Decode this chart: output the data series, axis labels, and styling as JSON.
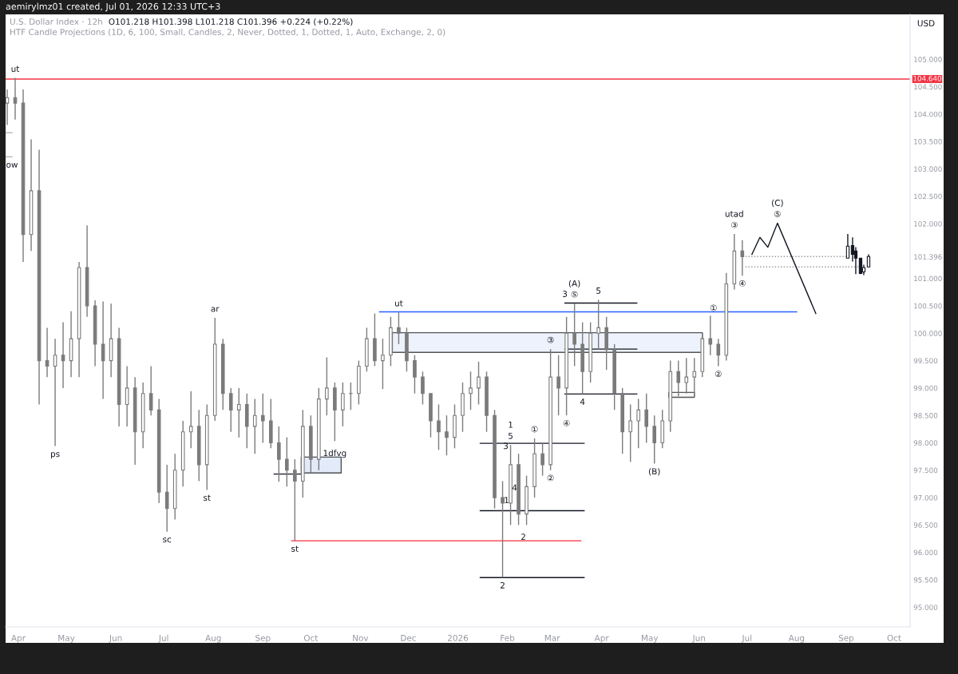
{
  "chart_data": {
    "type": "candlestick",
    "title": "U.S. Dollar Index · 12h",
    "subtitle": "HTF Candle Projections (1D, 6, 100, Small, Candles, 2, Never, Dotted, 1, Dotted, 1, Auto, Exchange, 2, 0)",
    "ylabel": "USD",
    "xlim": [
      "2025-03-24",
      "2026-10-11"
    ],
    "ylim": [
      94.64,
      105.82
    ],
    "xticks": [
      {
        "value": "2025-04-01",
        "label": "Apr"
      },
      {
        "value": "2025-05-01",
        "label": "May"
      },
      {
        "value": "2025-06-01",
        "label": "Jun"
      },
      {
        "value": "2025-07-01",
        "label": "Jul"
      },
      {
        "value": "2025-08-01",
        "label": "Aug"
      },
      {
        "value": "2025-09-01",
        "label": "Sep"
      },
      {
        "value": "2025-10-01",
        "label": "Oct"
      },
      {
        "value": "2025-11-01",
        "label": "Nov"
      },
      {
        "value": "2025-12-01",
        "label": "Dec"
      },
      {
        "value": "2026-01-01",
        "label": "2026"
      },
      {
        "value": "2026-02-01",
        "label": "Feb"
      },
      {
        "value": "2026-03-01",
        "label": "Mar"
      },
      {
        "value": "2026-04-01",
        "label": "Apr"
      },
      {
        "value": "2026-05-01",
        "label": "May"
      },
      {
        "value": "2026-06-01",
        "label": "Jun"
      },
      {
        "value": "2026-07-01",
        "label": "Jul"
      },
      {
        "value": "2026-08-01",
        "label": "Aug"
      },
      {
        "value": "2026-09-01",
        "label": "Sep"
      },
      {
        "value": "2026-10-01",
        "label": "Oct"
      }
    ],
    "yticks": [
      {
        "value": 95,
        "label": "95.000"
      },
      {
        "value": 95.5,
        "label": "95.500"
      },
      {
        "value": 96,
        "label": "96.000"
      },
      {
        "value": 96.5,
        "label": "96.500"
      },
      {
        "value": 97,
        "label": "97.000"
      },
      {
        "value": 97.5,
        "label": "97.500"
      },
      {
        "value": 98,
        "label": "98.000"
      },
      {
        "value": 98.5,
        "label": "98.500"
      },
      {
        "value": 99,
        "label": "99.000"
      },
      {
        "value": 99.5,
        "label": "99.500"
      },
      {
        "value": 100,
        "label": "100.000"
      },
      {
        "value": 100.5,
        "label": "100.500"
      },
      {
        "value": 101,
        "label": "101.000"
      },
      {
        "value": 101.396,
        "label": "101.396"
      },
      {
        "value": 102,
        "label": "102.000"
      },
      {
        "value": 102.5,
        "label": "102.500"
      },
      {
        "value": 103,
        "label": "103.000"
      },
      {
        "value": 103.5,
        "label": "103.500"
      },
      {
        "value": 104,
        "label": "104.000"
      },
      {
        "value": 104.5,
        "label": "104.500"
      },
      {
        "value": 105,
        "label": "105.000"
      }
    ],
    "ref_lines": [
      {
        "axis": "y",
        "value": 104.64,
        "label": "104.640",
        "color": "#f23645"
      }
    ],
    "series": [
      {
        "type": "line",
        "color": "#eef2fc",
        "x": [
          "2025-11-21",
          "2026-06-03"
        ],
        "values": [
          null,
          null
        ],
        "lower": [
          99.65,
          99.65
        ],
        "upper": [
          100.01,
          100.01
        ]
      },
      {
        "type": "line",
        "color": "#e3eaf9",
        "x": [
          "2025-09-25",
          "2025-10-20"
        ],
        "values": [
          null,
          null
        ],
        "lower": [
          97.45,
          97.45
        ],
        "upper": [
          97.74,
          97.74
        ]
      },
      {
        "type": "line",
        "color": "#f8f8f8",
        "x": [
          "2026-05-13",
          "2026-05-29"
        ],
        "values": [
          null,
          null
        ],
        "lower": [
          98.83,
          98.83
        ],
        "upper": [
          98.92,
          98.92
        ]
      },
      {
        "type": "line",
        "color": "#2962ff",
        "x": [
          "2025-11-13",
          "2026-08-01"
        ],
        "values": [
          100.39,
          100.39
        ]
      },
      {
        "type": "line",
        "color": "#f7525f",
        "x": [
          "2025-09-19",
          "2026-03-19"
        ],
        "values": [
          96.21,
          96.21
        ]
      },
      {
        "type": "line",
        "color": "#131722",
        "x": [
          "2026-03-09",
          "2026-04-23"
        ],
        "values": [
          100.55,
          100.55
        ]
      },
      {
        "type": "line",
        "color": "#131722",
        "x": [
          "2026-03-09",
          "2026-04-23"
        ],
        "values": [
          99.71,
          99.71
        ]
      },
      {
        "type": "line",
        "color": "#131722",
        "x": [
          "2026-03-09",
          "2026-04-23"
        ],
        "values": [
          98.89,
          98.89
        ]
      },
      {
        "type": "line",
        "color": "#131722",
        "x": [
          "2026-01-15",
          "2026-03-21"
        ],
        "values": [
          97.99,
          97.99
        ]
      },
      {
        "type": "line",
        "color": "#131722",
        "x": [
          "2026-01-15",
          "2026-03-21"
        ],
        "values": [
          96.76,
          96.76
        ]
      },
      {
        "type": "line",
        "color": "#131722",
        "x": [
          "2026-01-15",
          "2026-03-21"
        ],
        "values": [
          95.54,
          95.54
        ]
      },
      {
        "type": "line",
        "color": "#131722",
        "x": [
          "2025-09-08",
          "2025-09-25"
        ],
        "values": [
          97.43,
          97.43
        ]
      },
      {
        "type": "line",
        "color": "#b2b5be",
        "x": [
          "2025-03-24",
          "2025-03-28"
        ],
        "values": [
          103.66,
          103.66
        ]
      },
      {
        "type": "line",
        "color": "#b2b5be",
        "x": [
          "2025-03-24",
          "2025-03-28"
        ],
        "values": [
          103.22,
          103.22
        ]
      },
      {
        "type": "line",
        "color": "#9598a1",
        "line_style": "dotted",
        "x": [
          "2026-06-30",
          "2026-09-01"
        ],
        "values": [
          101.4,
          101.4
        ]
      },
      {
        "type": "line",
        "color": "#9598a1",
        "line_style": "dotted",
        "x": [
          "2026-06-30",
          "2026-09-11"
        ],
        "values": [
          101.21,
          101.21
        ]
      },
      {
        "type": "line",
        "color": "#131722",
        "x": [
          "2026-07-04",
          "2026-07-09",
          "2026-07-14",
          "2026-07-20",
          "2026-08-13"
        ],
        "values": [
          101.44,
          101.75,
          101.57,
          102.01,
          100.36
        ]
      },
      {
        "color": "#7b7b7b",
        "x": [
          "2025-03-25",
          "2025-03-30",
          "2025-04-04",
          "2025-04-09",
          "2025-04-14",
          "2025-04-19",
          "2025-04-24",
          "2025-04-29",
          "2025-05-04",
          "2025-05-09",
          "2025-05-14",
          "2025-05-19",
          "2025-05-24",
          "2025-05-29",
          "2025-06-03",
          "2025-06-08",
          "2025-06-13",
          "2025-06-18",
          "2025-06-23",
          "2025-06-28",
          "2025-07-03",
          "2025-07-08",
          "2025-07-13",
          "2025-07-18",
          "2025-07-23",
          "2025-07-28",
          "2025-08-02",
          "2025-08-07",
          "2025-08-12",
          "2025-08-17",
          "2025-08-22",
          "2025-08-27",
          "2025-09-01",
          "2025-09-06",
          "2025-09-11",
          "2025-09-16",
          "2025-09-21",
          "2025-09-26",
          "2025-10-01",
          "2025-10-06",
          "2025-10-11",
          "2025-10-16",
          "2025-10-21",
          "2025-10-26",
          "2025-10-31",
          "2025-11-05",
          "2025-11-10",
          "2025-11-15",
          "2025-11-20",
          "2025-11-25",
          "2025-11-30",
          "2025-12-05",
          "2025-12-10",
          "2025-12-15",
          "2025-12-20",
          "2025-12-25",
          "2025-12-30",
          "2026-01-04",
          "2026-01-09",
          "2026-01-14",
          "2026-01-19",
          "2026-01-24",
          "2026-01-29",
          "2026-02-03",
          "2026-02-08",
          "2026-02-13",
          "2026-02-18",
          "2026-02-23",
          "2026-02-28",
          "2026-03-05",
          "2026-03-10",
          "2026-03-15",
          "2026-03-20",
          "2026-03-25",
          "2026-03-30",
          "2026-04-04",
          "2026-04-09",
          "2026-04-14",
          "2026-04-19",
          "2026-04-24",
          "2026-04-29",
          "2026-05-04",
          "2026-05-09",
          "2026-05-14",
          "2026-05-19",
          "2026-05-24",
          "2026-05-29",
          "2026-06-03",
          "2026-06-08",
          "2026-06-13",
          "2026-06-18",
          "2026-06-23",
          "2026-06-28"
        ],
        "ohlc": [
          [
            104.2,
            104.45,
            103.8,
            104.3
          ],
          [
            104.3,
            104.66,
            103.9,
            104.2
          ],
          [
            104.2,
            104.45,
            101.3,
            101.8
          ],
          [
            101.8,
            103.54,
            101.5,
            102.6
          ],
          [
            102.6,
            103.35,
            98.7,
            99.5
          ],
          [
            99.5,
            100.1,
            99.2,
            99.4
          ],
          [
            99.4,
            99.9,
            97.94,
            99.6
          ],
          [
            99.6,
            100.2,
            99.0,
            99.5
          ],
          [
            99.5,
            100.4,
            99.2,
            99.9
          ],
          [
            99.9,
            101.3,
            99.2,
            101.2
          ],
          [
            101.2,
            101.97,
            100.3,
            100.5
          ],
          [
            100.5,
            100.6,
            99.4,
            99.8
          ],
          [
            99.8,
            100.58,
            98.8,
            99.5
          ],
          [
            99.5,
            100.54,
            99.2,
            99.9
          ],
          [
            99.9,
            100.1,
            98.3,
            98.7
          ],
          [
            98.7,
            99.4,
            98.3,
            99.0
          ],
          [
            99.0,
            99.2,
            97.6,
            98.2
          ],
          [
            98.2,
            99.1,
            97.9,
            98.9
          ],
          [
            98.9,
            99.4,
            98.5,
            98.6
          ],
          [
            98.6,
            98.8,
            96.9,
            97.1
          ],
          [
            97.1,
            97.6,
            96.38,
            96.8
          ],
          [
            96.8,
            97.8,
            96.6,
            97.5
          ],
          [
            97.5,
            98.4,
            97.2,
            98.2
          ],
          [
            98.2,
            98.94,
            97.9,
            98.3
          ],
          [
            98.3,
            98.6,
            97.3,
            97.6
          ],
          [
            97.6,
            98.7,
            97.14,
            98.5
          ],
          [
            98.5,
            100.28,
            98.4,
            99.8
          ],
          [
            99.8,
            99.9,
            98.6,
            98.9
          ],
          [
            98.9,
            99.0,
            98.2,
            98.6
          ],
          [
            98.6,
            99.0,
            98.1,
            98.7
          ],
          [
            98.7,
            98.9,
            97.9,
            98.3
          ],
          [
            98.3,
            98.8,
            97.8,
            98.5
          ],
          [
            98.5,
            98.9,
            98.0,
            98.4
          ],
          [
            98.4,
            98.8,
            97.9,
            98.0
          ],
          [
            98.0,
            98.3,
            97.29,
            97.7
          ],
          [
            97.7,
            98.1,
            97.2,
            97.5
          ],
          [
            97.5,
            97.7,
            96.21,
            97.3
          ],
          [
            97.3,
            98.6,
            97.0,
            98.3
          ],
          [
            98.3,
            98.5,
            97.45,
            97.7
          ],
          [
            97.7,
            99.0,
            97.5,
            98.8
          ],
          [
            98.8,
            99.56,
            98.5,
            99.0
          ],
          [
            99.0,
            99.1,
            98.03,
            98.6
          ],
          [
            98.6,
            99.1,
            98.3,
            98.9
          ],
          [
            98.9,
            99.1,
            98.6,
            98.9
          ],
          [
            98.9,
            99.5,
            98.7,
            99.4
          ],
          [
            99.4,
            100.1,
            99.3,
            99.9
          ],
          [
            99.9,
            100.36,
            99.4,
            99.5
          ],
          [
            99.5,
            99.9,
            98.98,
            99.6
          ],
          [
            99.6,
            100.3,
            99.4,
            100.1
          ],
          [
            100.1,
            100.38,
            99.8,
            100.0
          ],
          [
            100.0,
            100.1,
            99.3,
            99.5
          ],
          [
            99.5,
            99.6,
            98.9,
            99.2
          ],
          [
            99.2,
            99.3,
            98.7,
            98.9
          ],
          [
            98.9,
            98.9,
            98.1,
            98.4
          ],
          [
            98.4,
            98.7,
            97.87,
            98.2
          ],
          [
            98.2,
            98.5,
            97.77,
            98.1
          ],
          [
            98.1,
            98.7,
            97.9,
            98.5
          ],
          [
            98.5,
            99.1,
            98.2,
            98.9
          ],
          [
            98.9,
            99.3,
            98.6,
            99.0
          ],
          [
            99.0,
            99.48,
            98.7,
            99.2
          ],
          [
            99.2,
            99.3,
            98.2,
            98.5
          ],
          [
            98.5,
            98.6,
            96.8,
            97.0
          ],
          [
            97.0,
            97.3,
            95.54,
            96.9
          ],
          [
            96.9,
            97.96,
            96.5,
            97.6
          ],
          [
            97.6,
            97.8,
            96.5,
            96.7
          ],
          [
            96.7,
            97.4,
            96.5,
            97.2
          ],
          [
            97.2,
            98.08,
            97.0,
            97.8
          ],
          [
            97.8,
            98.0,
            97.4,
            97.6
          ],
          [
            97.6,
            99.71,
            97.5,
            99.2
          ],
          [
            99.2,
            99.6,
            98.5,
            99.0
          ],
          [
            99.0,
            100.3,
            98.5,
            100.0
          ],
          [
            100.0,
            100.54,
            99.4,
            99.8
          ],
          [
            99.8,
            100.2,
            98.89,
            99.3
          ],
          [
            99.3,
            100.2,
            99.1,
            100.0
          ],
          [
            100.0,
            100.61,
            99.7,
            100.1
          ],
          [
            100.1,
            100.3,
            99.33,
            99.7
          ],
          [
            99.7,
            99.8,
            98.6,
            98.9
          ],
          [
            98.9,
            99.0,
            97.8,
            98.2
          ],
          [
            98.2,
            98.7,
            97.65,
            98.4
          ],
          [
            98.4,
            98.8,
            97.9,
            98.6
          ],
          [
            98.6,
            98.9,
            98.0,
            98.3
          ],
          [
            98.3,
            98.5,
            97.62,
            98.0
          ],
          [
            98.0,
            98.6,
            97.9,
            98.4
          ],
          [
            98.4,
            99.5,
            98.2,
            99.3
          ],
          [
            99.3,
            99.5,
            98.85,
            99.1
          ],
          [
            99.1,
            99.55,
            98.9,
            99.2
          ],
          [
            99.2,
            99.55,
            98.85,
            99.3
          ],
          [
            99.3,
            100.0,
            99.2,
            99.9
          ],
          [
            99.9,
            100.32,
            99.6,
            99.8
          ],
          [
            99.8,
            99.9,
            99.4,
            99.6
          ],
          [
            99.6,
            101.1,
            99.5,
            100.9
          ],
          [
            100.9,
            101.81,
            100.8,
            101.5
          ],
          [
            101.5,
            101.7,
            101.05,
            101.396
          ]
        ]
      },
      {
        "color": "#131722",
        "x": [
          "2026-09-02",
          "2026-09-05",
          "2026-09-07",
          "2026-09-10",
          "2026-09-12",
          "2026-09-15"
        ],
        "ohlc": [
          [
            101.37,
            101.81,
            101.37,
            101.59
          ],
          [
            101.6,
            101.75,
            101.31,
            101.44
          ],
          [
            101.5,
            101.57,
            101.08,
            101.37
          ],
          [
            101.37,
            101.37,
            101.08,
            101.09
          ],
          [
            101.12,
            101.25,
            101.06,
            101.2
          ],
          [
            101.21,
            101.44,
            101.2,
            101.4
          ]
        ]
      }
    ],
    "annotations": [
      "aemirylmz01 created, Jul 01, 2026 12:33 UTC+3",
      "O101.218 H101.398 L101.218 C101.396 +0.224 (+0.22%)",
      {
        "text": "ut",
        "x": "2025-03-30",
        "y": 104.66
      },
      {
        "text": "ow",
        "x": "2025-03-28",
        "y": 103.22
      },
      {
        "text": "ps",
        "x": "2025-04-24",
        "y": 97.94
      },
      {
        "text": "sc",
        "x": "2025-07-03",
        "y": 96.38
      },
      {
        "text": "st",
        "x": "2025-07-28",
        "y": 97.14
      },
      {
        "text": "ar",
        "x": "2025-08-02",
        "y": 100.28
      },
      {
        "text": "st",
        "x": "2025-09-21",
        "y": 96.21
      },
      {
        "text": "1dfvg",
        "x": "2025-10-16",
        "y": 97.8
      },
      {
        "text": "ut",
        "x": "2025-11-25",
        "y": 100.38
      },
      {
        "text": "3",
        "x": "2026-01-31",
        "y": 97.93
      },
      {
        "text": "5",
        "x": "2026-02-03",
        "y": 97.96
      },
      {
        "text": "1",
        "x": "2026-02-03",
        "y": 97.96
      },
      {
        "text": "4",
        "x": "2026-02-05T12:00",
        "y": 97.17
      },
      {
        "text": "1",
        "x": "2026-01-31T12:00",
        "y": 96.94
      },
      {
        "text": "2",
        "x": "2026-01-29",
        "y": 95.54
      },
      {
        "text": "2",
        "x": "2026-02-11",
        "y": 96.27
      },
      {
        "text": "①",
        "x": "2026-02-18",
        "y": 98.08
      },
      {
        "text": "②",
        "x": "2026-02-28",
        "y": 97.5
      },
      {
        "text": "③",
        "x": "2026-02-28",
        "y": 99.71
      },
      {
        "text": "④",
        "x": "2026-03-10",
        "y": 98.5
      },
      {
        "text": "3",
        "x": "2026-03-09",
        "y": 100.55
      },
      {
        "text": "⑤",
        "x": "2026-03-15",
        "y": 100.54
      },
      {
        "text": "(A)",
        "x": "2026-03-15",
        "y": 100.54
      },
      {
        "text": "4",
        "x": "2026-03-20",
        "y": 98.89
      },
      {
        "text": "5",
        "x": "2026-03-30",
        "y": 100.61
      },
      {
        "text": "(B)",
        "x": "2026-05-04",
        "y": 97.62
      },
      {
        "text": "①",
        "x": "2026-06-10",
        "y": 100.45
      },
      {
        "text": "②",
        "x": "2026-06-13",
        "y": 99.4
      },
      {
        "text": "③",
        "x": "2026-06-23",
        "y": 101.81
      },
      {
        "text": "utad",
        "x": "2026-06-23",
        "y": 101.81
      },
      {
        "text": "④",
        "x": "2026-06-28",
        "y": 101.05
      },
      {
        "text": "⑤",
        "x": "2026-07-20",
        "y": 102.01
      },
      {
        "text": "(C)",
        "x": "2026-07-20",
        "y": 102.01
      }
    ]
  }
}
